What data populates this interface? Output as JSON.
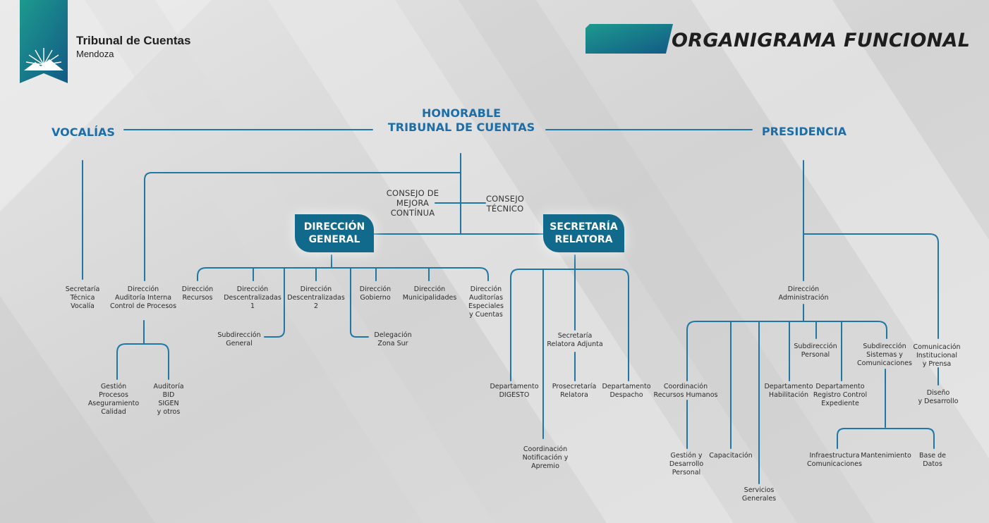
{
  "header": {
    "org_name": "Tribunal de Cuentas",
    "org_location": "Mendoza",
    "title": "ORGANIGRAMA FUNCIONAL"
  },
  "colors": {
    "accent": "#116a8c",
    "heading": "#1d6ea8",
    "line": "#1f78a4"
  },
  "top": {
    "honorable": "HONORABLE\nTRIBUNAL DE CUENTAS",
    "vocalias": "VOCALÍAS",
    "presidencia": "PRESIDENCIA"
  },
  "advisory": {
    "consejo_mejora": "CONSEJO DE\nMEJORA\nCONTÍNUA",
    "consejo_tecnico": "CONSEJO\nTÉCNICO"
  },
  "boxes": {
    "direccion_general": "DIRECCIÓN\nGENERAL",
    "secretaria_relatora": "SECRETARÍA\nRELATORA"
  },
  "vocalias_units": {
    "secretaria_tecnica": "Secretaría\nTécnica\nVocalía",
    "auditoria_interna": "Dirección\nAuditoría Interna\nControl de Procesos",
    "gestion_procesos": "Gestión\nProcesos\nAseguramiento\nCalidad",
    "auditoria_bid": "Auditoría\nBID\nSIGEN\ny otros"
  },
  "dg_units": {
    "recursos": "Dirección\nRecursos",
    "desc1": "Dirección\nDescentralizadas\n1",
    "desc2": "Dirección\nDescentralizadas\n2",
    "gobierno": "Dirección\nGobierno",
    "municipalidades": "Dirección\nMunicipalidades",
    "auditorias_especiales": "Dirección\nAuditorías\nEspeciales\ny Cuentas",
    "subdireccion_general": "Subdirección\nGeneral",
    "delegacion_sur": "Delegación\nZona Sur"
  },
  "sr_units": {
    "adjunta": "Secretaría\nRelatora Adjunta",
    "digesto": "Departamento\nDIGESTO",
    "prosecretaria": "Prosecretaría\nRelatora",
    "despacho": "Departamento\nDespacho",
    "notificacion": "Coordinación\nNotificación y\nApremio"
  },
  "pres_units": {
    "administracion": "Dirección\nAdministración",
    "comunicacion": "Comunicación\nInstitucional\ny Prensa",
    "diseno": "Diseño\ny Desarrollo",
    "rrhh": "Coordinación\nRecursos Humanos",
    "subdir_personal": "Subdirección\nPersonal",
    "subdir_sistemas": "Subdirección\nSistemas y\nComunicaciones",
    "habilitacion": "Departamento\nHabilitación",
    "registro": "Departamento\nRegistro Control\nExpediente",
    "gestion_personal": "Gestión y\nDesarrollo\nPersonal",
    "capacitacion": "Capacitación",
    "servicios": "Servicios\nGenerales",
    "infraestructura": "Infraestructura\nComunicaciones",
    "mantenimiento": "Mantenimiento",
    "base_datos": "Base de\nDatos"
  }
}
